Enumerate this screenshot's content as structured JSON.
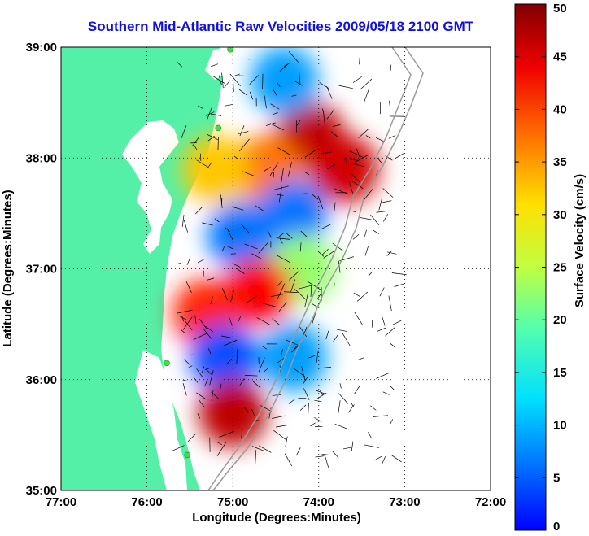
{
  "chart_data": {
    "type": "heatmap",
    "title": "Southern Mid-Atlantic Raw Velocities 2009/05/18 2100 GMT",
    "xlabel": "Longitude (Degrees:Minutes)",
    "ylabel": "Latitude (Degrees:Minutes)",
    "x_ticks": [
      "77:00",
      "76:00",
      "75:00",
      "74:00",
      "73:00",
      "72:00"
    ],
    "x_tick_values": [
      -77,
      -76,
      -75,
      -74,
      -73,
      -72
    ],
    "y_ticks": [
      "35:00",
      "36:00",
      "37:00",
      "38:00",
      "39:00"
    ],
    "y_tick_values": [
      35,
      36,
      37,
      38,
      39
    ],
    "xlim": [
      -77,
      -72
    ],
    "ylim": [
      35,
      39
    ],
    "grid": true,
    "colorbar": {
      "label": "Surface Velocity (cm/s)",
      "ticks": [
        "0",
        "5",
        "10",
        "15",
        "20",
        "25",
        "30",
        "35",
        "40",
        "45",
        "50"
      ],
      "range": [
        0,
        50
      ],
      "colormap": "jet"
    },
    "field_regions": [
      {
        "lon": -74.1,
        "lat": 38.2,
        "speed": 47
      },
      {
        "lon": -73.7,
        "lat": 37.9,
        "speed": 46
      },
      {
        "lon": -74.6,
        "lat": 37.9,
        "speed": 38
      },
      {
        "lon": -75.2,
        "lat": 37.9,
        "speed": 34
      },
      {
        "lon": -74.9,
        "lat": 37.3,
        "speed": 12
      },
      {
        "lon": -74.3,
        "lat": 37.5,
        "speed": 12
      },
      {
        "lon": -74.2,
        "lat": 37.0,
        "speed": 26
      },
      {
        "lon": -74.7,
        "lat": 36.8,
        "speed": 44
      },
      {
        "lon": -75.3,
        "lat": 36.6,
        "speed": 42
      },
      {
        "lon": -75.1,
        "lat": 36.2,
        "speed": 10
      },
      {
        "lon": -74.3,
        "lat": 36.2,
        "speed": 14
      },
      {
        "lon": -75.0,
        "lat": 35.7,
        "speed": 47
      },
      {
        "lon": -74.4,
        "lat": 38.7,
        "speed": 14
      }
    ],
    "stations": [
      {
        "lon": -75.03,
        "lat": 38.98
      },
      {
        "lon": -75.17,
        "lat": 38.27
      },
      {
        "lon": -75.77,
        "lat": 36.15
      },
      {
        "lon": -75.53,
        "lat": 35.32
      }
    ]
  },
  "colors": {
    "title": "#1010e0",
    "land": "#55f0a8",
    "station": "#44dd44",
    "grid": "#000000"
  }
}
